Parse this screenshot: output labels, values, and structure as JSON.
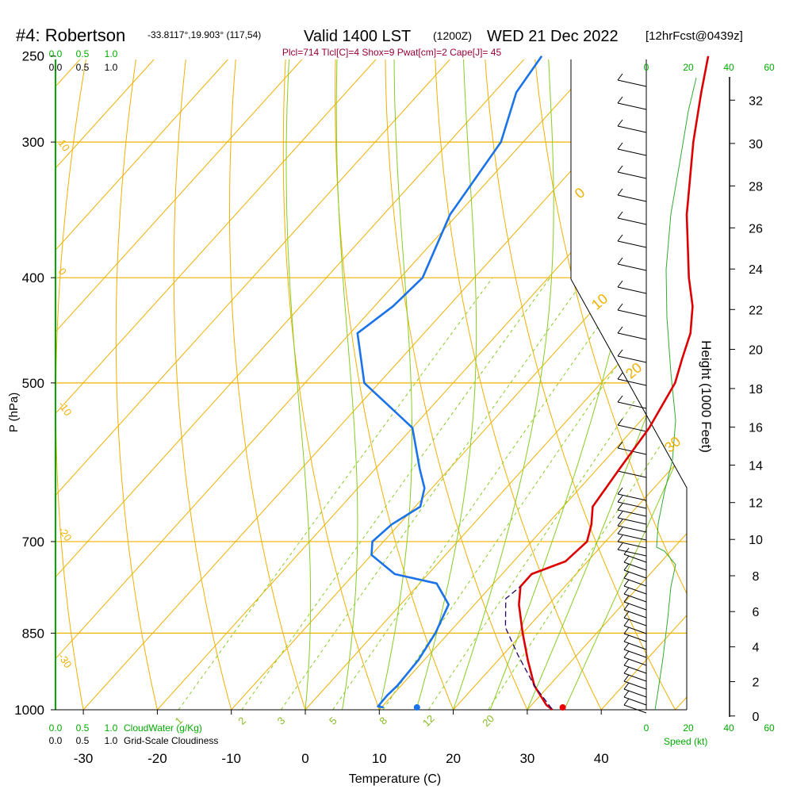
{
  "chart_data": {
    "type": "line",
    "title": "#4: Robertson",
    "location": "-33.8117°,19.903° (117,54)",
    "valid": "Valid 1400 LST",
    "valid_z": "(1200Z)",
    "date": "WED 21 Dec 2022",
    "forecast": "[12hrFcst@0439z]",
    "indices": "Plcl=714 Tlcl[C]=4 Shox=9 Pwat[cm]=2 Cape[J]= 45",
    "xlabel": "Temperature (C)",
    "ylabel": "P (hPa)",
    "ylabel_right": "Height (1000 Feet)",
    "xlim": [
      -35,
      47
    ],
    "ylim": [
      1000,
      250
    ],
    "x_ticks": [
      "-30",
      "-20",
      "-10",
      "0",
      "10",
      "20",
      "30",
      "40"
    ],
    "x_tick_values": [
      -30,
      -20,
      -10,
      0,
      10,
      20,
      30,
      40
    ],
    "pressure_ticks": [
      "250",
      "300",
      "400",
      "500",
      "700",
      "850",
      "1000"
    ],
    "pressure_tick_values": [
      250,
      300,
      400,
      500,
      700,
      850,
      1000
    ],
    "height_ticks": [
      "0",
      "2",
      "4",
      "6",
      "8",
      "10",
      "12",
      "14",
      "16",
      "18",
      "20",
      "22",
      "24",
      "26",
      "28",
      "30",
      "32"
    ],
    "cloud_ticks_green": [
      "0.0",
      "0.5",
      "1.0"
    ],
    "cloud_ticks_black": [
      "0.0",
      "0.5",
      "1.0"
    ],
    "cloudwater_label": "CloudWater (g/Kg)",
    "cloudiness_label": "Grid-Scale Cloudiness",
    "speed_ticks": [
      "0",
      "20",
      "40",
      "60"
    ],
    "speed_label": "Speed (kt)",
    "mixing_ratio_labels": [
      "1",
      "2",
      "3",
      "5",
      "8",
      "12",
      "20"
    ],
    "temperature_line_labels": [
      "10",
      "0",
      "-10",
      "-20",
      "-30"
    ],
    "upper_right_labels": [
      "0",
      "10",
      "20",
      "30"
    ],
    "series": [
      {
        "name": "Temperature",
        "color": "#dd0000",
        "points": [
          [
            33.4,
            1000
          ],
          [
            32,
            990
          ],
          [
            28,
            950
          ],
          [
            24,
            900
          ],
          [
            20,
            850
          ],
          [
            16,
            800
          ],
          [
            14,
            770
          ],
          [
            14,
            750
          ],
          [
            17,
            730
          ],
          [
            17.5,
            700
          ],
          [
            16,
            675
          ],
          [
            14,
            650
          ],
          [
            13,
            600
          ],
          [
            12,
            550
          ],
          [
            10,
            500
          ],
          [
            8,
            475
          ],
          [
            6,
            450
          ],
          [
            3,
            425
          ],
          [
            -1,
            400
          ],
          [
            -9,
            350
          ],
          [
            -17,
            300
          ],
          [
            -22,
            270
          ],
          [
            -25.5,
            250
          ]
        ]
      },
      {
        "name": "Dewpoint",
        "color": "#1a73e8",
        "points": [
          [
            10.3,
            995
          ],
          [
            9.4,
            993
          ],
          [
            9.3,
            970
          ],
          [
            9.5,
            950
          ],
          [
            9.2,
            900
          ],
          [
            8.2,
            850
          ],
          [
            6.5,
            800
          ],
          [
            2.3,
            765
          ],
          [
            -4.5,
            750
          ],
          [
            -10,
            720
          ],
          [
            -11.5,
            700
          ],
          [
            -11,
            675
          ],
          [
            -9.3,
            650
          ],
          [
            -11,
            625
          ],
          [
            -14,
            600
          ],
          [
            -20,
            550
          ],
          [
            -32,
            500
          ],
          [
            -39,
            450
          ],
          [
            -37.5,
            425
          ],
          [
            -37,
            400
          ],
          [
            -41,
            350
          ],
          [
            -43,
            300
          ],
          [
            -47,
            270
          ],
          [
            -48,
            250
          ]
        ]
      },
      {
        "name": "Parcel",
        "color": "#220066",
        "points": [
          [
            33.2,
            998
          ],
          [
            28,
            950
          ],
          [
            22,
            890
          ],
          [
            17,
            840
          ],
          [
            13.5,
            790
          ],
          [
            14,
            770
          ]
        ]
      }
    ],
    "surface_temperature": 34.5,
    "surface_dewpoint": 14.8,
    "surface_pressure": 995
  }
}
